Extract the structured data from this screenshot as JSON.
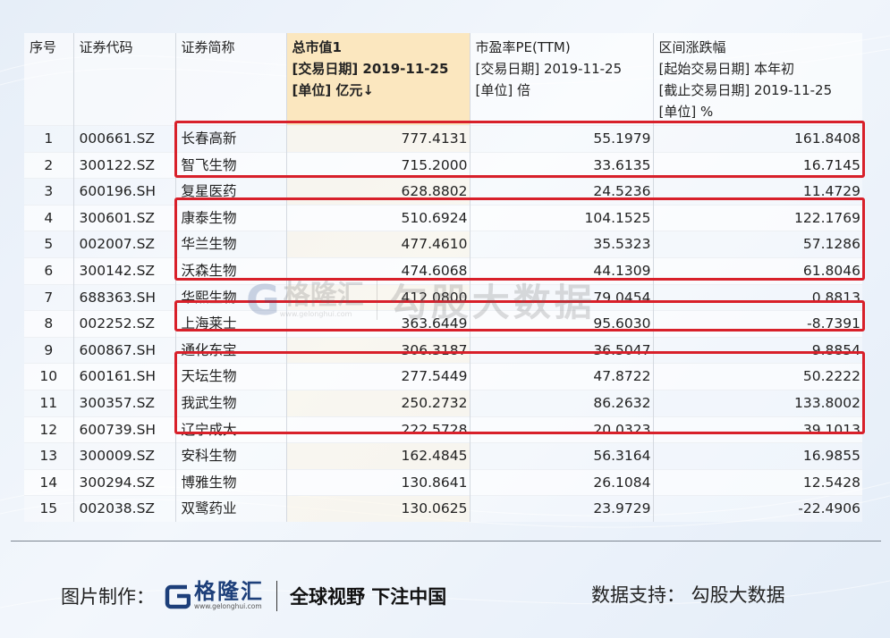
{
  "table": {
    "headers": [
      {
        "lines": [
          "序号"
        ]
      },
      {
        "lines": [
          "证券代码"
        ]
      },
      {
        "lines": [
          "证券简称"
        ]
      },
      {
        "lines": [
          "总市值1",
          "[交易日期] 2019-11-25",
          "[单位] 亿元↓"
        ]
      },
      {
        "lines": [
          "市盈率PE(TTM)",
          "[交易日期] 2019-11-25",
          "[单位] 倍"
        ]
      },
      {
        "lines": [
          "区间涨跌幅",
          "[起始交易日期] 本年初",
          "[截止交易日期] 2019-11-25",
          "[单位] %"
        ]
      }
    ],
    "rows": [
      [
        "1",
        "000661.SZ",
        "长春高新",
        "777.4131",
        "55.1979",
        "161.8408"
      ],
      [
        "2",
        "300122.SZ",
        "智飞生物",
        "715.2000",
        "33.6135",
        "16.7145"
      ],
      [
        "3",
        "600196.SH",
        "复星医药",
        "628.8802",
        "24.5236",
        "11.4729"
      ],
      [
        "4",
        "300601.SZ",
        "康泰生物",
        "510.6924",
        "104.1525",
        "122.1769"
      ],
      [
        "5",
        "002007.SZ",
        "华兰生物",
        "477.4610",
        "35.5323",
        "57.1286"
      ],
      [
        "6",
        "300142.SZ",
        "沃森生物",
        "474.6068",
        "44.1309",
        "61.8046"
      ],
      [
        "7",
        "688363.SH",
        "华熙生物",
        "412.0800",
        "79.0454",
        "0.8813"
      ],
      [
        "8",
        "002252.SZ",
        "上海莱士",
        "363.6449",
        "95.6030",
        "-8.7391"
      ],
      [
        "9",
        "600867.SH",
        "通化东宝",
        "306.3187",
        "36.5047",
        "9.8854"
      ],
      [
        "10",
        "600161.SH",
        "天坛生物",
        "277.5449",
        "47.8722",
        "50.2222"
      ],
      [
        "11",
        "300357.SZ",
        "我武生物",
        "250.2732",
        "86.2632",
        "133.8002"
      ],
      [
        "12",
        "600739.SH",
        "辽宁成大",
        "222.5728",
        "20.0323",
        "39.1013"
      ],
      [
        "13",
        "300009.SZ",
        "安科生物",
        "162.4845",
        "56.3164",
        "16.9855"
      ],
      [
        "14",
        "300294.SZ",
        "博雅生物",
        "130.8641",
        "26.1084",
        "12.5428"
      ],
      [
        "15",
        "002038.SZ",
        "双鹭药业",
        "130.0625",
        "23.9729",
        "-22.4906"
      ]
    ],
    "highlight_color": "#d8202a",
    "sorted_header_color": "#fbe7bf"
  },
  "watermark": {
    "brand": "格隆汇",
    "url": "www.gelonghui.com",
    "text": "勾股大数据"
  },
  "footer": {
    "made_by_label": "图片制作：",
    "brand_name": "格隆汇",
    "brand_url": "www.gelonghui.com",
    "slogan": "全球视野 下注中国",
    "data_support": "数据支持：  勾股大数据",
    "brand_color": "#1d3f7a"
  }
}
